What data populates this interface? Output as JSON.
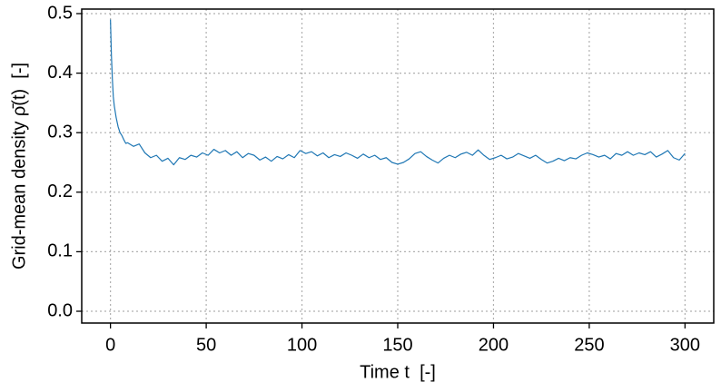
{
  "chart_data": {
    "type": "line",
    "x_label": "Time t  [-]",
    "y_label": "Grid-mean density ρ̄(t)  [-]",
    "xlim": [
      -15,
      315
    ],
    "ylim": [
      -0.0198,
      0.5076
    ],
    "xticks": [
      0,
      50,
      100,
      150,
      200,
      250,
      300
    ],
    "yticks": [
      {
        "value": 0,
        "label": "0.0"
      },
      0.1,
      0.2,
      0.3,
      0.4,
      0.5
    ],
    "grid": true,
    "series": [
      {
        "color": "#1f77b4",
        "x": [
          0,
          0.5,
          1,
          1.5,
          2,
          3,
          4,
          5,
          6,
          7,
          8,
          9,
          12,
          15,
          18,
          21,
          24,
          27,
          30,
          33,
          36,
          39,
          42,
          45,
          48,
          51,
          54,
          57,
          60,
          63,
          66,
          69,
          72,
          75,
          78,
          81,
          84,
          87,
          90,
          93,
          96,
          99,
          102,
          105,
          108,
          111,
          114,
          117,
          120,
          123,
          126,
          129,
          132,
          135,
          138,
          141,
          144,
          147,
          150,
          153,
          156,
          159,
          162,
          165,
          168,
          171,
          174,
          177,
          180,
          183,
          186,
          189,
          192,
          195,
          198,
          201,
          204,
          207,
          210,
          213,
          216,
          219,
          222,
          225,
          228,
          231,
          234,
          237,
          240,
          243,
          246,
          249,
          252,
          255,
          258,
          261,
          264,
          267,
          270,
          273,
          276,
          279,
          282,
          285,
          288,
          291,
          294,
          297,
          300
        ],
        "values": [
          0.49,
          0.43,
          0.39,
          0.36,
          0.345,
          0.325,
          0.31,
          0.3,
          0.295,
          0.288,
          0.282,
          0.283,
          0.277,
          0.281,
          0.266,
          0.258,
          0.262,
          0.252,
          0.257,
          0.246,
          0.258,
          0.255,
          0.262,
          0.259,
          0.266,
          0.262,
          0.272,
          0.266,
          0.27,
          0.262,
          0.268,
          0.258,
          0.265,
          0.262,
          0.254,
          0.259,
          0.252,
          0.26,
          0.256,
          0.263,
          0.258,
          0.27,
          0.265,
          0.268,
          0.261,
          0.266,
          0.258,
          0.263,
          0.26,
          0.266,
          0.262,
          0.257,
          0.264,
          0.258,
          0.262,
          0.255,
          0.258,
          0.25,
          0.247,
          0.25,
          0.256,
          0.265,
          0.268,
          0.26,
          0.254,
          0.249,
          0.257,
          0.262,
          0.258,
          0.264,
          0.267,
          0.262,
          0.271,
          0.262,
          0.255,
          0.258,
          0.262,
          0.256,
          0.259,
          0.265,
          0.261,
          0.257,
          0.262,
          0.255,
          0.249,
          0.252,
          0.257,
          0.253,
          0.258,
          0.256,
          0.262,
          0.266,
          0.263,
          0.259,
          0.262,
          0.256,
          0.265,
          0.262,
          0.268,
          0.262,
          0.266,
          0.263,
          0.268,
          0.259,
          0.264,
          0.27,
          0.258,
          0.254,
          0.265
        ]
      }
    ]
  }
}
